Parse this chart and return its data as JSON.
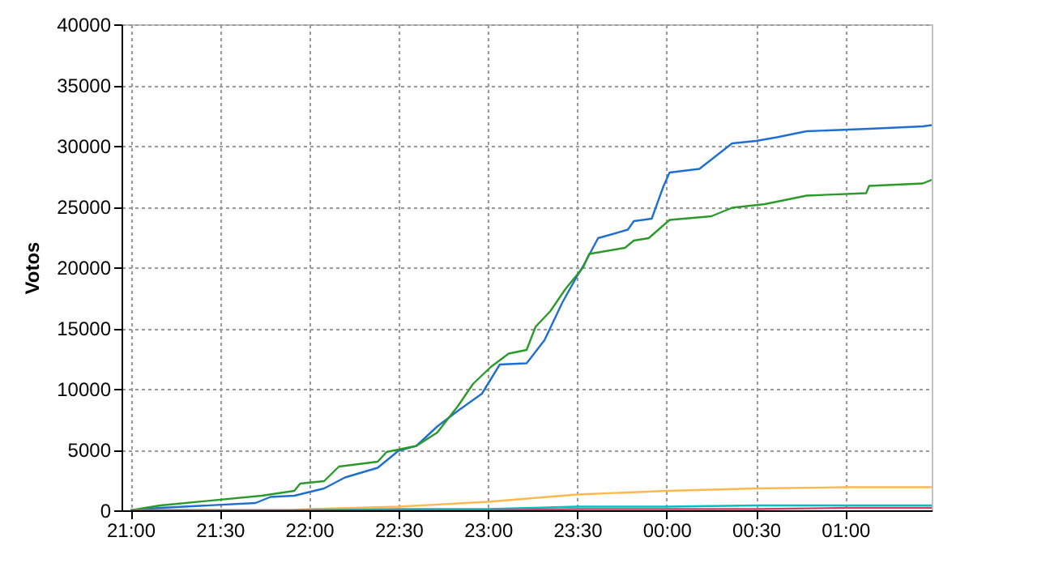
{
  "chart_data": {
    "type": "line",
    "ylabel": "Votos",
    "xlim": [
      "2000-01-01T20:57",
      "2000-01-02T01:29"
    ],
    "ylim": [
      0,
      40000
    ],
    "xticks": [
      {
        "value": "2000-01-01T21:00",
        "label": "21:00"
      },
      {
        "value": "2000-01-01T21:30",
        "label": "21:30"
      },
      {
        "value": "2000-01-01T22:00",
        "label": "22:00"
      },
      {
        "value": "2000-01-01T22:30",
        "label": "22:30"
      },
      {
        "value": "2000-01-01T23:00",
        "label": "23:00"
      },
      {
        "value": "2000-01-01T23:30",
        "label": "23:30"
      },
      {
        "value": "2000-01-02T00:00",
        "label": "00:00"
      },
      {
        "value": "2000-01-02T00:30",
        "label": "00:30"
      },
      {
        "value": "2000-01-02T01:00",
        "label": "01:00"
      }
    ],
    "yticks": [
      0,
      5000,
      10000,
      15000,
      20000,
      25000,
      30000,
      35000,
      40000
    ],
    "grid": true,
    "marker": "none",
    "series": [
      {
        "color": "#1f6fd0",
        "x": [
          "2000-01-01T21:00",
          "2000-01-01T21:10",
          "2000-01-01T21:42",
          "2000-01-01T21:47",
          "2000-01-01T21:55",
          "2000-01-01T22:05",
          "2000-01-01T22:12",
          "2000-01-01T22:23",
          "2000-01-01T22:30",
          "2000-01-01T22:36",
          "2000-01-01T22:43",
          "2000-01-01T22:50",
          "2000-01-01T22:58",
          "2000-01-01T23:04",
          "2000-01-01T23:13",
          "2000-01-01T23:19",
          "2000-01-01T23:25",
          "2000-01-01T23:30",
          "2000-01-01T23:32",
          "2000-01-01T23:37",
          "2000-01-01T23:47",
          "2000-01-01T23:49",
          "2000-01-01T23:55",
          "2000-01-01T23:59",
          "2000-01-02T00:01",
          "2000-01-02T00:11",
          "2000-01-02T00:22",
          "2000-01-02T00:30",
          "2000-01-02T00:37",
          "2000-01-02T00:47",
          "2000-01-02T01:08",
          "2000-01-02T01:26",
          "2000-01-02T01:29"
        ],
        "values": [
          0,
          200,
          600,
          1100,
          1200,
          1800,
          2700,
          3500,
          4900,
          5300,
          6900,
          8200,
          9600,
          12000,
          12100,
          14000,
          17100,
          19300,
          20100,
          22400,
          23100,
          23800,
          24000,
          26700,
          27800,
          28100,
          30200,
          30400,
          30700,
          31200,
          31400,
          31600,
          31700
        ]
      },
      {
        "color": "#2a9a2a",
        "x": [
          "2000-01-01T21:00",
          "2000-01-01T21:10",
          "2000-01-01T21:44",
          "2000-01-01T21:55",
          "2000-01-01T21:57",
          "2000-01-01T22:05",
          "2000-01-01T22:10",
          "2000-01-01T22:23",
          "2000-01-01T22:26",
          "2000-01-01T22:36",
          "2000-01-01T22:43",
          "2000-01-01T22:50",
          "2000-01-01T22:55",
          "2000-01-01T23:01",
          "2000-01-01T23:07",
          "2000-01-01T23:13",
          "2000-01-01T23:16",
          "2000-01-01T23:21",
          "2000-01-01T23:26",
          "2000-01-01T23:32",
          "2000-01-01T23:34",
          "2000-01-01T23:46",
          "2000-01-01T23:49",
          "2000-01-01T23:54",
          "2000-01-02T00:01",
          "2000-01-02T00:15",
          "2000-01-02T00:22",
          "2000-01-02T00:33",
          "2000-01-02T00:47",
          "2000-01-02T01:07",
          "2000-01-02T01:08",
          "2000-01-02T01:26",
          "2000-01-02T01:29"
        ],
        "values": [
          0,
          400,
          1200,
          1600,
          2200,
          2400,
          3600,
          4000,
          4800,
          5300,
          6400,
          8600,
          10400,
          11800,
          12900,
          13200,
          15100,
          16400,
          18200,
          20000,
          21100,
          21600,
          22200,
          22400,
          23900,
          24200,
          24900,
          25200,
          25900,
          26100,
          26700,
          26900,
          27200
        ]
      },
      {
        "color": "#ffb84d",
        "x": [
          "2000-01-01T21:00",
          "2000-01-01T21:54",
          "2000-01-01T22:00",
          "2000-01-01T22:30",
          "2000-01-01T23:00",
          "2000-01-01T23:30",
          "2000-01-02T00:00",
          "2000-01-02T00:30",
          "2000-01-02T01:00",
          "2000-01-02T01:29"
        ],
        "values": [
          0,
          0,
          100,
          300,
          700,
          1300,
          1600,
          1800,
          1900,
          1900
        ]
      },
      {
        "color": "#00c0c0",
        "x": [
          "2000-01-01T21:00",
          "2000-01-01T22:00",
          "2000-01-01T22:30",
          "2000-01-01T23:00",
          "2000-01-01T23:30",
          "2000-01-02T00:00",
          "2000-01-02T00:30",
          "2000-01-02T01:00",
          "2000-01-02T01:29"
        ],
        "values": [
          0,
          0,
          100,
          100,
          300,
          300,
          400,
          400,
          400
        ]
      },
      {
        "color": "#d0406a",
        "x": [
          "2000-01-01T21:00",
          "2000-01-01T22:00",
          "2000-01-01T23:00",
          "2000-01-01T23:30",
          "2000-01-02T00:00",
          "2000-01-02T00:30",
          "2000-01-02T01:00",
          "2000-01-02T01:29"
        ],
        "values": [
          0,
          0,
          0,
          100,
          100,
          100,
          200,
          200
        ]
      }
    ]
  }
}
